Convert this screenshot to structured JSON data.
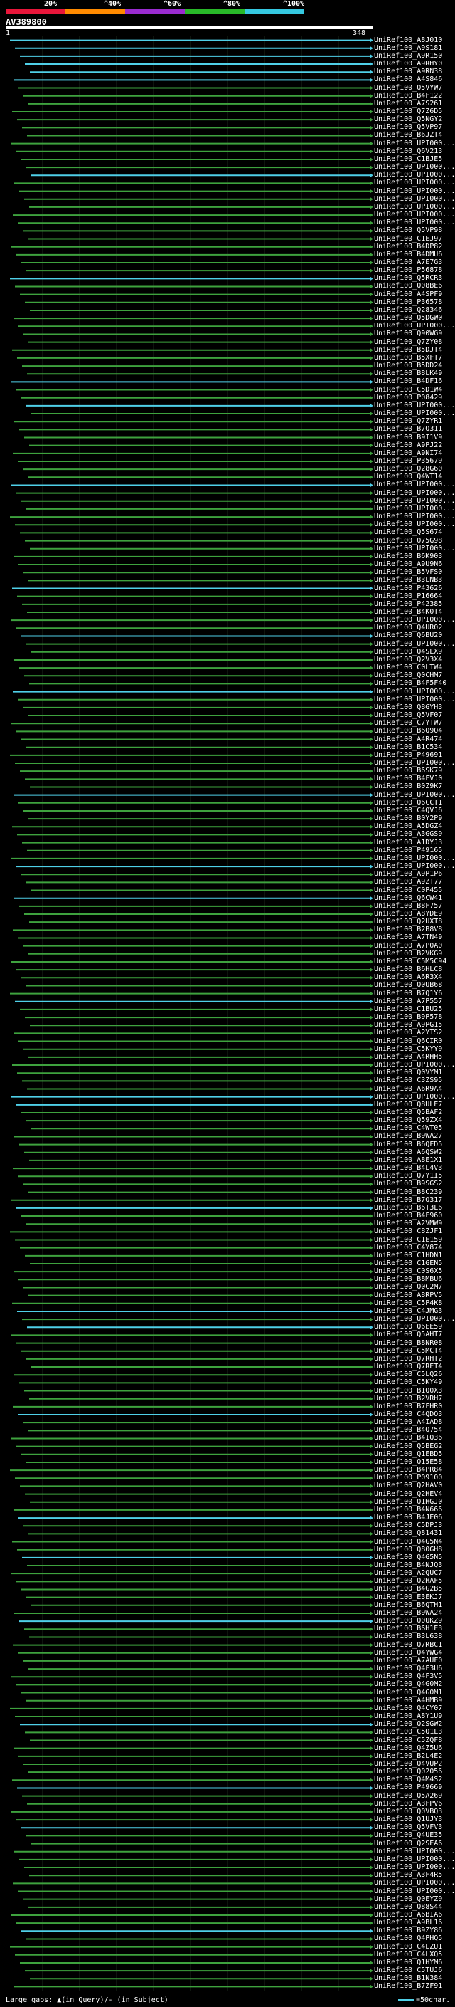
{
  "legend": {
    "labels": [
      "20%",
      "^40%",
      "^60%",
      "^80%",
      "^100%"
    ],
    "colors": [
      "#e8163a",
      "#ff8a00",
      "#9a2bd0",
      "#28b828",
      "#35c8e0"
    ]
  },
  "query": {
    "name": "AV389800",
    "start": "1",
    "end": "348"
  },
  "colors": {
    "identity_high": "#4fd0e8",
    "identity_mid": "#3ea23e",
    "background": "#000000",
    "text": "#ffffff"
  },
  "hits": [
    "UniRef100_A8J010",
    "UniRef100_A9S181",
    "UniRef100_A9R150",
    "UniRef100_A9RHY0",
    "UniRef100_A9RN38",
    "UniRef100_A4S846",
    "UniRef100_Q5VYW7",
    "UniRef100_B4F122",
    "UniRef100_A7S261",
    "UniRef100_Q7Z6D5",
    "UniRef100_Q5NGY2",
    "UniRef100_Q5VP97",
    "UniRef100_B6JZT4",
    "UniRef100_UPI000...",
    "UniRef100_Q6V213",
    "UniRef100_C1BJE5",
    "UniRef100_UPI000...",
    "UniRef100_UPI000...",
    "UniRef100_UPI000...",
    "UniRef100_UPI000...",
    "UniRef100_UPI000...",
    "UniRef100_UPI000...",
    "UniRef100_UPI000...",
    "UniRef100_UPI000...",
    "UniRef100_Q5VP98",
    "UniRef100_C1EJ97",
    "UniRef100_B4DP82",
    "UniRef100_B4DMU6",
    "UniRef100_A7E7G3",
    "UniRef100_P56878",
    "UniRef100_Q5RCR3",
    "UniRef100_Q08BE6",
    "UniRef100_A4SPF9",
    "UniRef100_P36578",
    "UniRef100_Q28346",
    "UniRef100_Q5DGW0",
    "UniRef100_UPI000...",
    "UniRef100_Q90WG9",
    "UniRef100_Q7ZY08",
    "UniRef100_B5DJT4",
    "UniRef100_B5XFT7",
    "UniRef100_B5DD24",
    "UniRef100_B8LK49",
    "UniRef100_B4DF16",
    "UniRef100_C5D1W4",
    "UniRef100_P08429",
    "UniRef100_UPI000...",
    "UniRef100_UPI000...",
    "UniRef100_Q7ZYR1",
    "UniRef100_B7Q311",
    "UniRef100_B9I1V9",
    "UniRef100_A9PJ22",
    "UniRef100_A9NI74",
    "UniRef100_P35679",
    "UniRef100_Q28G60",
    "UniRef100_Q4WT14",
    "UniRef100_UPI000...",
    "UniRef100_UPI000...",
    "UniRef100_UPI000...",
    "UniRef100_UPI000...",
    "UniRef100_UPI000...",
    "UniRef100_UPI000...",
    "UniRef100_Q5S674",
    "UniRef100_O75G98",
    "UniRef100_UPI000...",
    "UniRef100_B6K903",
    "UniRef100_A9U9N6",
    "UniRef100_B5VFS0",
    "UniRef100_B3LNB3",
    "UniRef100_P43626",
    "UniRef100_P16664",
    "UniRef100_P42385",
    "UniRef100_B4K0T4",
    "UniRef100_UPI000...",
    "UniRef100_Q4UR02",
    "UniRef100_Q6BU20",
    "UniRef100_UPI000...",
    "UniRef100_Q4SLX9",
    "UniRef100_Q2V3X4",
    "UniRef100_C0LTW4",
    "UniRef100_Q0CHM7",
    "UniRef100_B4F5F40",
    "UniRef100_UPI000...",
    "UniRef100_UPI000...",
    "UniRef100_Q8GYH3",
    "UniRef100_Q5VF07",
    "UniRef100_C7YTW7",
    "UniRef100_B6Q9Q4",
    "UniRef100_A4R474",
    "UniRef100_B1C534",
    "UniRef100_P49691",
    "UniRef100_UPI000...",
    "UniRef100_B6SK79",
    "UniRef100_B4FVJ0",
    "UniRef100_B0Z9K7",
    "UniRef100_UPI000...",
    "UniRef100_Q6CCT1",
    "UniRef100_C4QVJ6",
    "UniRef100_B0Y2P9",
    "UniRef100_A5DGZ4",
    "UniRef100_A3GGS9",
    "UniRef100_A1DYJ3",
    "UniRef100_P49165",
    "UniRef100_UPI000...",
    "UniRef100_UPI000...",
    "UniRef100_A9P1P6",
    "UniRef100_A9ZT77",
    "UniRef100_C0P455",
    "UniRef100_Q6CW41",
    "UniRef100_B8F757",
    "UniRef100_A8YDE9",
    "UniRef100_Q2UXT8",
    "UniRef100_B2B8V8",
    "UniRef100_A7TN49",
    "UniRef100_A7P0A0",
    "UniRef100_B2VKG9",
    "UniRef100_C5M5C94",
    "UniRef100_B6HLC8",
    "UniRef100_A6R3X4",
    "UniRef100_Q0UB68",
    "UniRef100_B7Q1Y6",
    "UniRef100_A7P557",
    "UniRef100_C1BU25",
    "UniRef100_B9P578",
    "UniRef100_A9PG15",
    "UniRef100_A2YTS2",
    "UniRef100_Q6CIR0",
    "UniRef100_C5KYY9",
    "UniRef100_A4RHH5",
    "UniRef100_UPI000...",
    "UniRef100_Q0VYM1",
    "UniRef100_C3ZS95",
    "UniRef100_A6R9A4",
    "UniRef100_UPI000...",
    "UniRef100_Q8ULE7",
    "UniRef100_Q5BAF2",
    "UniRef100_Q59ZX4",
    "UniRef100_C4WT05",
    "UniRef100_B9WA27",
    "UniRef100_B6QFD5",
    "UniRef100_A6QSW2",
    "UniRef100_A8E1X1",
    "UniRef100_B4L4V3",
    "UniRef100_Q7Y1I5",
    "UniRef100_B9SGS2",
    "UniRef100_B8C239",
    "UniRef100_B7Q317",
    "UniRef100_B6T3L6",
    "UniRef100_B4F960",
    "UniRef100_A2VMW9",
    "UniRef100_C8ZJF1",
    "UniRef100_C1E159",
    "UniRef100_C4Y874",
    "UniRef100_C1HDN1",
    "UniRef100_C1GEN5",
    "UniRef100_C0S6X5",
    "UniRef100_B8MBU6",
    "UniRef100_Q0C2M7",
    "UniRef100_A8RPV5",
    "UniRef100_C5P4K8",
    "UniRef100_C4JMG3",
    "UniRef100_UPI000...",
    "UniRef100_Q6EE59",
    "UniRef100_Q5AHT7",
    "UniRef100_B8NR08",
    "UniRef100_C5MCT4",
    "UniRef100_Q7RHT2",
    "UniRef100_Q7RET4",
    "UniRef100_C5LQ26",
    "UniRef100_C5KY49",
    "UniRef100_B1Q0X3",
    "UniRef100_B2VRH7",
    "UniRef100_B7FHR0",
    "UniRef100_C4QDO3",
    "UniRef100_A4IAD8",
    "UniRef100_B4Q754",
    "UniRef100_B4IQ36",
    "UniRef100_Q5BEG2",
    "UniRef100_Q1EBD5",
    "UniRef100_Q15E58",
    "UniRef100_B4PR84",
    "UniRef100_P09100",
    "UniRef100_Q2HAV0",
    "UniRef100_Q2HEV4",
    "UniRef100_Q1HGJ0",
    "UniRef100_B4N666",
    "UniRef100_B4JE06",
    "UniRef100_C5DPJ3",
    "UniRef100_Q81431",
    "UniRef100_Q4G5N4",
    "UniRef100_Q80GH8",
    "UniRef100_Q4G5N5",
    "UniRef100_B4NJQ3",
    "UniRef100_A2QUC7",
    "UniRef100_Q2HAF5",
    "UniRef100_B4G2B5",
    "UniRef100_E3EKJ7",
    "UniRef100_B6QTH1",
    "UniRef100_B9WA24",
    "UniRef100_Q0UKZ9",
    "UniRef100_B6H1E3",
    "UniRef100_B3L638",
    "UniRef100_Q7RBC1",
    "UniRef100_Q4YWG4",
    "UniRef100_A7AUF0",
    "UniRef100_Q4F3U6",
    "UniRef100_Q4F3V5",
    "UniRef100_Q4G0M2",
    "UniRef100_Q4G0M1",
    "UniRef100_A4HMB9",
    "UniRef100_Q4CY07",
    "UniRef100_A8Y1U9",
    "UniRef100_Q2SGW2",
    "UniRef100_C5Q1L3",
    "UniRef100_C5ZQF8",
    "UniRef100_Q4Z5U6",
    "UniRef100_B2L4E2",
    "UniRef100_Q4VUP2",
    "UniRef100_Q02056",
    "UniRef100_Q4M4S2",
    "UniRef100_P49669",
    "UniRef100_Q5A269",
    "UniRef100_A3FPV6",
    "UniRef100_Q0VBQ3",
    "UniRef100_Q1UJY3",
    "UniRef100_Q5VFV3",
    "UniRef100_Q4UE35",
    "UniRef100_Q2SEA6",
    "UniRef100_UPI000...",
    "UniRef100_UPI000...",
    "UniRef100_UPI000...",
    "UniRef100_A3F4R5",
    "UniRef100_UPI000...",
    "UniRef100_UPI000...",
    "UniRef100_Q0EYZ9",
    "UniRef100_Q88S44",
    "UniRef100_A6BIA6",
    "UniRef100_A9BL16",
    "UniRef100_B9ZY86",
    "UniRef100_Q4PHQ5",
    "UniRef100_C4LZU1",
    "UniRef100_C4LXQ5",
    "UniRef100_Q1HYM6",
    "UniRef100_C5TUJ6",
    "UniRef100_B1N384",
    "UniRef100_B7ZF91"
  ],
  "footer": {
    "gaps_text": "Large gaps: ▲(in Query)/- (in Subject)",
    "scale_text": "=50char."
  }
}
